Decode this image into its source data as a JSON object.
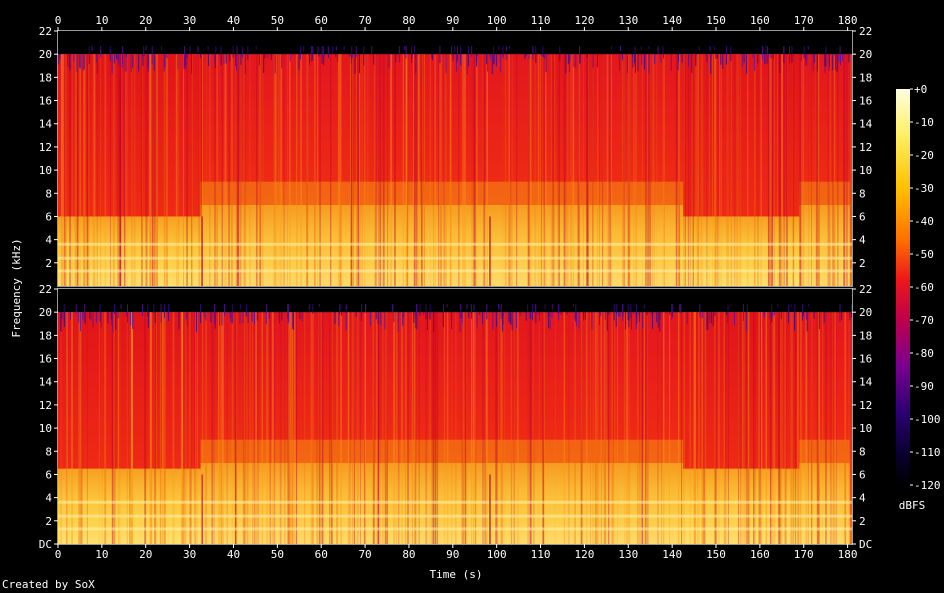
{
  "chart_data": {
    "type": "heatmap",
    "title": "",
    "xlabel": "Time (s)",
    "ylabel": "Frequency (kHz)",
    "xlim": [
      0,
      181
    ],
    "ylim_khz": [
      0,
      22
    ],
    "x_ticks": [
      "0",
      "10",
      "20",
      "30",
      "40",
      "50",
      "60",
      "70",
      "80",
      "90",
      "100",
      "110",
      "120",
      "130",
      "140",
      "150",
      "160",
      "170",
      "180"
    ],
    "y_ticks_upper": [
      "2",
      "4",
      "6",
      "8",
      "10",
      "12",
      "14",
      "16",
      "18",
      "20",
      "22"
    ],
    "y_ticks_lower": [
      "DC",
      "2",
      "4",
      "6",
      "8",
      "10",
      "12",
      "14",
      "16",
      "18",
      "20",
      "22"
    ],
    "channels": [
      {
        "name": "",
        "lowpass_khz": 20,
        "full_band_segments_s": [
          [
            32.5,
            142.5
          ],
          [
            169,
            180.5
          ]
        ],
        "reduced_band_segments_s": [
          [
            0,
            32.5
          ],
          [
            142.5,
            169
          ]
        ],
        "reduced_band_cutoff_khz": 6
      },
      {
        "name": "",
        "lowpass_khz": 20,
        "full_band_segments_s": [
          [
            32.5,
            142.5
          ],
          [
            169,
            180.5
          ]
        ],
        "reduced_band_segments_s": [
          [
            0,
            32.5
          ],
          [
            142.5,
            169
          ]
        ],
        "reduced_band_cutoff_khz": 6.5
      }
    ],
    "colorbar": {
      "label": "dBFS",
      "ticks": [
        "+0",
        "-10",
        "-20",
        "-30",
        "-40",
        "-50",
        "-60",
        "-70",
        "-80",
        "-90",
        "-100",
        "-110",
        "-120"
      ],
      "range_db": [
        -120,
        0
      ]
    }
  },
  "footer": "Created by SoX"
}
